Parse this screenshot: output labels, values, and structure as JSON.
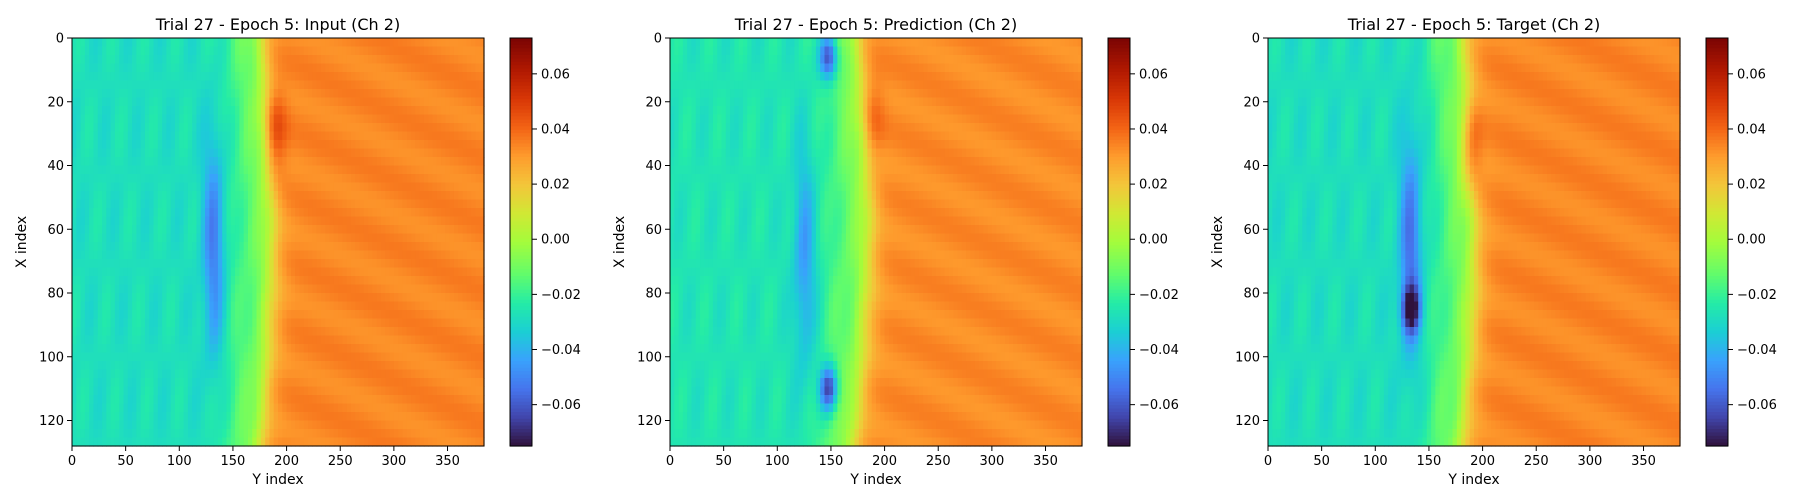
{
  "chart_data": [
    {
      "type": "heatmap",
      "title": "Trial 27 - Epoch 5: Input (Ch 2)",
      "xlabel": "Y index",
      "ylabel": "X index",
      "xlim": [
        0,
        384
      ],
      "ylim": [
        128,
        0
      ],
      "xticks": [
        0,
        50,
        100,
        150,
        200,
        250,
        300,
        350
      ],
      "yticks": [
        0,
        20,
        40,
        60,
        80,
        100,
        120
      ],
      "colorbar": {
        "range": [
          -0.075,
          0.073
        ],
        "ticks": [
          -0.06,
          -0.04,
          -0.02,
          0.0,
          0.02,
          0.04,
          0.06
        ],
        "tick_labels": [
          "−0.06",
          "−0.04",
          "−0.02",
          "0.00",
          "0.02",
          "0.04",
          "0.06"
        ]
      },
      "field": {
        "front_x_at_row0": 176,
        "front_x_at_row128": 174,
        "front_bulge": 10,
        "left_value": -0.028,
        "right_value": 0.034,
        "peak": {
          "x": 188,
          "y": 30,
          "value": 0.055
        },
        "blue_band": {
          "x": 132,
          "y": 65,
          "value": -0.052
        }
      }
    },
    {
      "type": "heatmap",
      "title": "Trial 27 - Epoch 5: Prediction (Ch 2)",
      "xlabel": "Y index",
      "ylabel": "X index",
      "xlim": [
        0,
        384
      ],
      "ylim": [
        128,
        0
      ],
      "xticks": [
        0,
        50,
        100,
        150,
        200,
        250,
        300,
        350
      ],
      "yticks": [
        0,
        20,
        40,
        60,
        80,
        100,
        120
      ],
      "colorbar": {
        "range": [
          -0.075,
          0.073
        ],
        "ticks": [
          -0.06,
          -0.04,
          -0.02,
          0.0,
          0.02,
          0.04,
          0.06
        ],
        "tick_labels": [
          "−0.06",
          "−0.04",
          "−0.02",
          "0.00",
          "0.02",
          "0.04",
          "0.06"
        ]
      },
      "field": {
        "front_x_at_row0": 174,
        "front_x_at_row128": 170,
        "front_bulge": 12,
        "left_value": -0.026,
        "right_value": 0.033,
        "peak": {
          "x": 188,
          "y": 25,
          "value": 0.045
        },
        "blue_band": {
          "x": 125,
          "y": 70,
          "value": -0.045
        },
        "dark_spots": [
          {
            "x": 148,
            "y": 6,
            "value": -0.07
          },
          {
            "x": 148,
            "y": 110,
            "value": -0.072
          }
        ]
      }
    },
    {
      "type": "heatmap",
      "title": "Trial 27 - Epoch 5: Target (Ch 2)",
      "xlabel": "Y index",
      "ylabel": "X index",
      "xlim": [
        0,
        384
      ],
      "ylim": [
        128,
        0
      ],
      "xticks": [
        0,
        50,
        100,
        150,
        200,
        250,
        300,
        350
      ],
      "yticks": [
        0,
        20,
        40,
        60,
        80,
        100,
        120
      ],
      "colorbar": {
        "range": [
          -0.075,
          0.073
        ],
        "ticks": [
          -0.06,
          -0.04,
          -0.02,
          0.0,
          0.02,
          0.04,
          0.06
        ],
        "tick_labels": [
          "−0.06",
          "−0.04",
          "−0.02",
          "0.00",
          "0.02",
          "0.04",
          "0.06"
        ]
      },
      "field": {
        "front_x_at_row0": 182,
        "front_x_at_row128": 180,
        "front_bulge": 10,
        "left_value": -0.028,
        "right_value": 0.034,
        "peak": {
          "x": 188,
          "y": 35,
          "value": 0.058
        },
        "blue_band": {
          "x": 133,
          "y": 65,
          "value": -0.055
        },
        "dark_spots": [
          {
            "x": 133,
            "y": 85,
            "value": -0.068
          }
        ]
      }
    }
  ]
}
